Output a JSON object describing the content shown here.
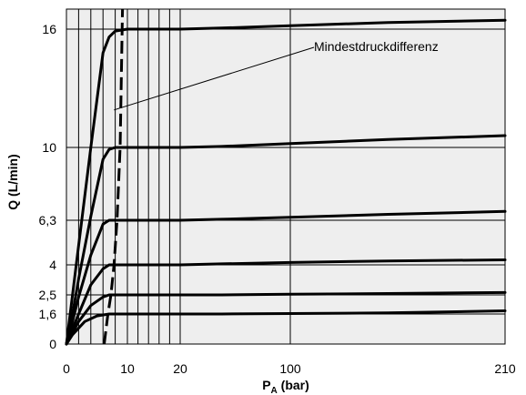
{
  "chart_data": {
    "type": "line",
    "xlabel": "P",
    "xlabel_sub": "A",
    "xlabel_unit": " (bar)",
    "ylabel": "Q (L/min)",
    "xlim": [
      0,
      210
    ],
    "ylim": [
      0,
      16.9
    ],
    "grid": true,
    "x_scale": "linear-logish",
    "x_ticks": [
      {
        "value": 0,
        "label": "0"
      },
      {
        "value": 10,
        "label": "10"
      },
      {
        "value": 20,
        "label": "20"
      },
      {
        "value": 100,
        "label": "100"
      },
      {
        "value": 210,
        "label": "210"
      }
    ],
    "x_gridlines": [
      2,
      4,
      6,
      8,
      10,
      12,
      14,
      16,
      18,
      20,
      100
    ],
    "y_ticks": [
      {
        "value": 0,
        "label": "0"
      },
      {
        "value": 1.6,
        "label": "1,6"
      },
      {
        "value": 2.5,
        "label": "2,5"
      },
      {
        "value": 4,
        "label": "4"
      },
      {
        "value": 6.3,
        "label": "6,3"
      },
      {
        "value": 10,
        "label": "10"
      },
      {
        "value": 16,
        "label": "16"
      }
    ],
    "series": [
      {
        "x": [
          0,
          1,
          3,
          5,
          7,
          8,
          10,
          20,
          50,
          100,
          150,
          210
        ],
        "y": [
          0,
          0.5,
          1.2,
          1.5,
          1.6,
          1.6,
          1.6,
          1.6,
          1.6,
          1.62,
          1.65,
          1.75
        ]
      },
      {
        "x": [
          0,
          1,
          2,
          4,
          6,
          7,
          8,
          10,
          20,
          50,
          100,
          150,
          210
        ],
        "y": [
          0,
          0.6,
          1.2,
          2.0,
          2.4,
          2.5,
          2.5,
          2.5,
          2.5,
          2.5,
          2.53,
          2.57,
          2.62
        ]
      },
      {
        "x": [
          0,
          1,
          2,
          4,
          6,
          7,
          8,
          10,
          20,
          50,
          100,
          150,
          210
        ],
        "y": [
          0,
          0.8,
          1.6,
          3.0,
          3.8,
          4.0,
          4.0,
          4.0,
          4.0,
          4.05,
          4.12,
          4.2,
          4.26
        ]
      },
      {
        "x": [
          0,
          1,
          2,
          4,
          6,
          7,
          8,
          10,
          20,
          50,
          100,
          150,
          210
        ],
        "y": [
          0,
          1.2,
          2.4,
          4.5,
          6.1,
          6.3,
          6.3,
          6.3,
          6.3,
          6.35,
          6.45,
          6.6,
          6.75
        ]
      },
      {
        "x": [
          0,
          1,
          2,
          4,
          6,
          7,
          8,
          10,
          20,
          50,
          100,
          150,
          210
        ],
        "y": [
          0,
          1.6,
          3.3,
          6.5,
          9.4,
          9.9,
          10.0,
          10.0,
          10.0,
          10.05,
          10.2,
          10.4,
          10.6
        ]
      },
      {
        "x": [
          0,
          1,
          2,
          4,
          6,
          7,
          8,
          10,
          20,
          50,
          100,
          150,
          210
        ],
        "y": [
          0,
          2.5,
          5.0,
          10.0,
          14.8,
          15.6,
          15.9,
          16.0,
          16.0,
          16.05,
          16.15,
          16.3,
          16.4
        ]
      }
    ],
    "boundary_curve": {
      "name": "Mindestdruckdifferenz",
      "x": [
        6.2,
        6.8,
        7.3,
        7.8,
        8.3,
        8.8,
        9.2
      ],
      "y": [
        0,
        1.6,
        2.5,
        4.0,
        6.3,
        10.0,
        16.9
      ]
    },
    "annotation": {
      "text": "Mindestdruckdifferenz",
      "target": {
        "x": 7.8,
        "y": 11.9
      }
    }
  }
}
